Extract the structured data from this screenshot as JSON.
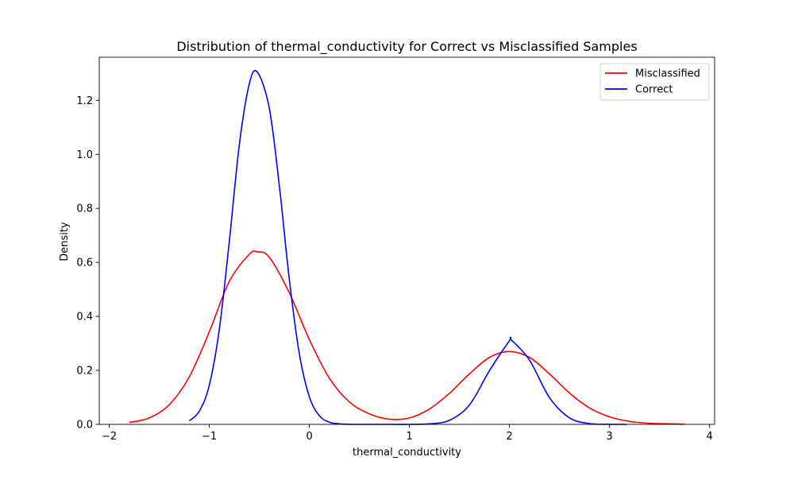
{
  "chart_data": {
    "type": "line",
    "title": "Distribution of thermal_conductivity for Correct vs Misclassified Samples",
    "xlabel": "thermal_conductivity",
    "ylabel": "Density",
    "xlim": [
      -2.1,
      4.05
    ],
    "ylim": [
      0,
      1.36
    ],
    "xticks": [
      -2,
      -1,
      0,
      1,
      2,
      3,
      4
    ],
    "yticks": [
      0.0,
      0.2,
      0.4,
      0.6,
      0.8,
      1.0,
      1.2
    ],
    "xtick_labels": [
      "−2",
      "−1",
      "0",
      "1",
      "2",
      "3",
      "4"
    ],
    "ytick_labels": [
      "0.0",
      "0.2",
      "0.4",
      "0.6",
      "0.8",
      "1.0",
      "1.2"
    ],
    "grid": false,
    "legend_position": "top-right",
    "series": [
      {
        "name": "Misclassified",
        "color": "#ff0000",
        "x": [
          -1.8,
          -1.6,
          -1.4,
          -1.2,
          -1.0,
          -0.8,
          -0.6,
          -0.52,
          -0.4,
          -0.2,
          0.0,
          0.2,
          0.4,
          0.6,
          0.8,
          1.0,
          1.2,
          1.4,
          1.6,
          1.8,
          2.0,
          2.2,
          2.4,
          2.6,
          2.8,
          3.0,
          3.2,
          3.4,
          3.6,
          3.75
        ],
        "y": [
          0.007,
          0.024,
          0.073,
          0.176,
          0.343,
          0.53,
          0.63,
          0.639,
          0.619,
          0.487,
          0.314,
          0.171,
          0.083,
          0.039,
          0.019,
          0.024,
          0.057,
          0.115,
          0.187,
          0.248,
          0.27,
          0.248,
          0.187,
          0.116,
          0.061,
          0.028,
          0.011,
          0.004,
          0.002,
          0.001
        ]
      },
      {
        "name": "Correct",
        "color": "#0000ff",
        "x": [
          -1.2,
          -1.1,
          -1.0,
          -0.9,
          -0.8,
          -0.7,
          -0.6,
          -0.52,
          -0.4,
          -0.3,
          -0.2,
          -0.1,
          0.0,
          0.1,
          0.2,
          0.3,
          0.4,
          0.6,
          0.8,
          1.0,
          1.2,
          1.4,
          1.6,
          1.8,
          2.0,
          2.02,
          2.2,
          2.4,
          2.6,
          2.8,
          3.0,
          3.17
        ],
        "y": [
          0.013,
          0.049,
          0.145,
          0.352,
          0.678,
          1.036,
          1.262,
          1.305,
          1.17,
          0.883,
          0.536,
          0.261,
          0.102,
          0.032,
          0.008,
          0.002,
          0.0003,
          0.0,
          0.0,
          0.0,
          0.002,
          0.015,
          0.072,
          0.199,
          0.31,
          0.312,
          0.238,
          0.099,
          0.024,
          0.003,
          0.0003,
          0.0
        ]
      }
    ]
  }
}
